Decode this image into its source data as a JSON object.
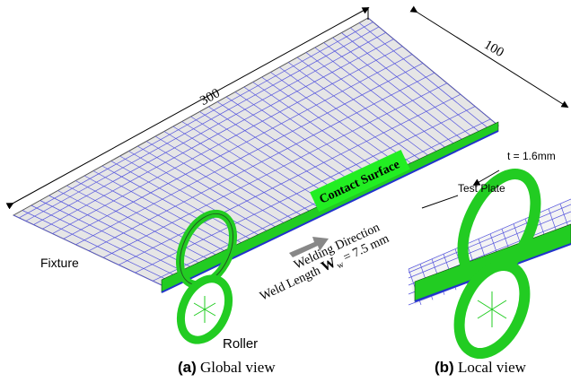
{
  "dimensions": {
    "length": "300",
    "width": "100",
    "thickness": "t = 1.6mm"
  },
  "labels": {
    "test_plate": "Test Plate",
    "contact_surface": "Contact Surface",
    "fixture": "Fixture",
    "roller": "Roller",
    "welding_direction": "Welding Direction",
    "weld_length": {
      "prefix": "Weld Length",
      "symbol": "W",
      "subscript": "w",
      "value": "= 7.5 mm"
    }
  },
  "captions": [
    {
      "tag": "(a)",
      "text": "Global view"
    },
    {
      "tag": "(b)",
      "text": "Local view"
    }
  ]
}
